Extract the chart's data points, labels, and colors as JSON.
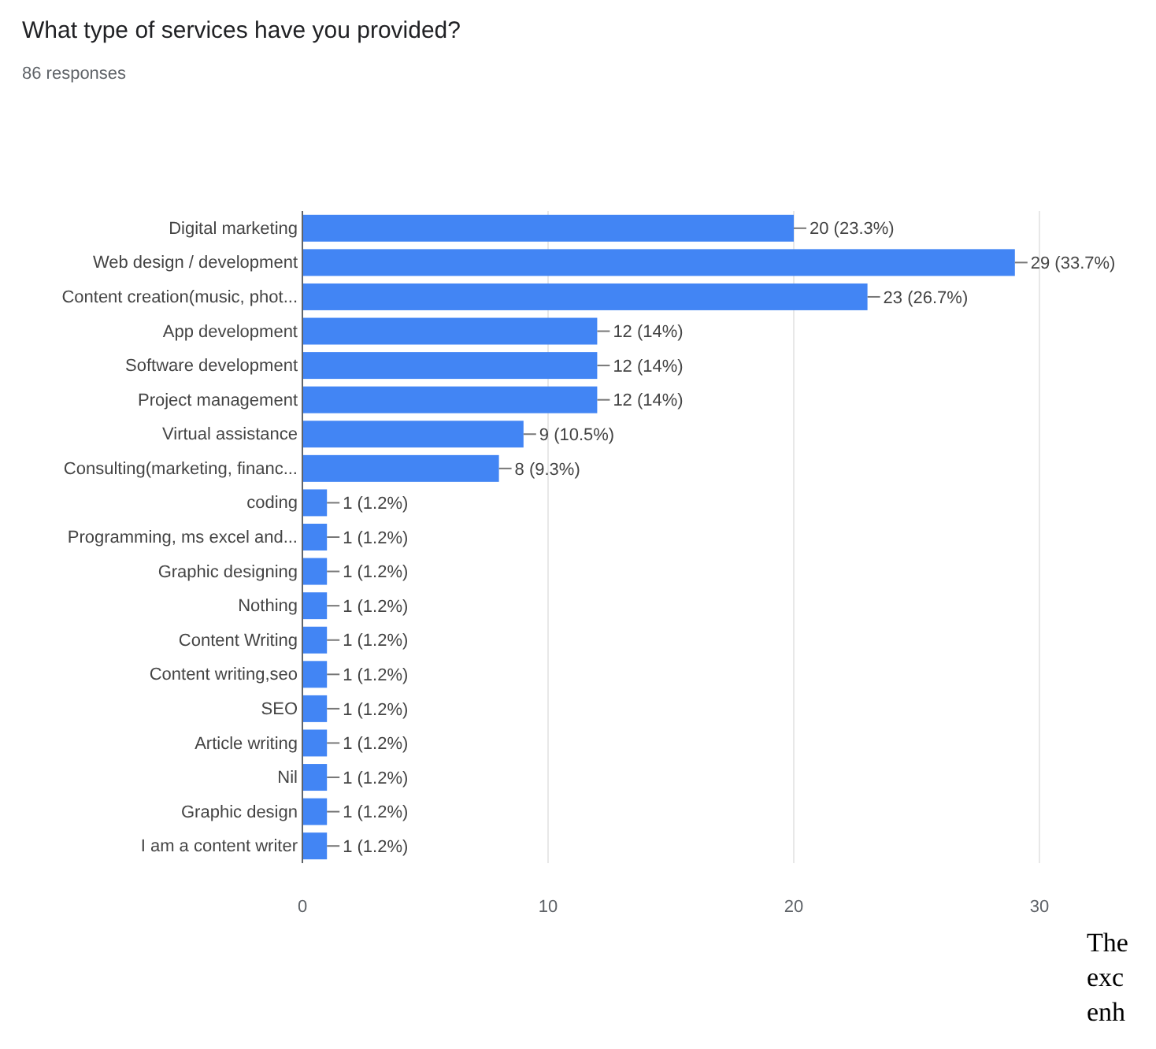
{
  "chart_data": {
    "type": "bar",
    "orientation": "horizontal",
    "title": "What type of services have you provided?",
    "subtitle": "86 responses",
    "categories": [
      "Digital marketing",
      "Web design / development",
      "Content creation(music, phot...",
      "App development",
      "Software development",
      "Project management",
      "Virtual assistance",
      "Consulting(marketing, financ...",
      "coding",
      "Programming, ms excel and...",
      "Graphic designing",
      "Nothing",
      "Content Writing",
      "Content writing,seo",
      "SEO",
      "Article writing",
      "Nil",
      "Graphic design",
      "I am a content writer"
    ],
    "values": [
      20,
      29,
      23,
      12,
      12,
      12,
      9,
      8,
      1,
      1,
      1,
      1,
      1,
      1,
      1,
      1,
      1,
      1,
      1
    ],
    "value_labels": [
      "20 (23.3%)",
      "29 (33.7%)",
      "23 (26.7%)",
      "12 (14%)",
      "12 (14%)",
      "12 (14%)",
      "9 (10.5%)",
      "8 (9.3%)",
      "1 (1.2%)",
      "1 (1.2%)",
      "1 (1.2%)",
      "1 (1.2%)",
      "1 (1.2%)",
      "1 (1.2%)",
      "1 (1.2%)",
      "1 (1.2%)",
      "1 (1.2%)",
      "1 (1.2%)",
      "1 (1.2%)"
    ],
    "color": "#4285f4",
    "xlim": [
      0,
      30
    ],
    "xticks": [
      0,
      10,
      20,
      30
    ],
    "grid": "x",
    "annotations": [
      "The",
      "exc",
      "enh"
    ]
  }
}
